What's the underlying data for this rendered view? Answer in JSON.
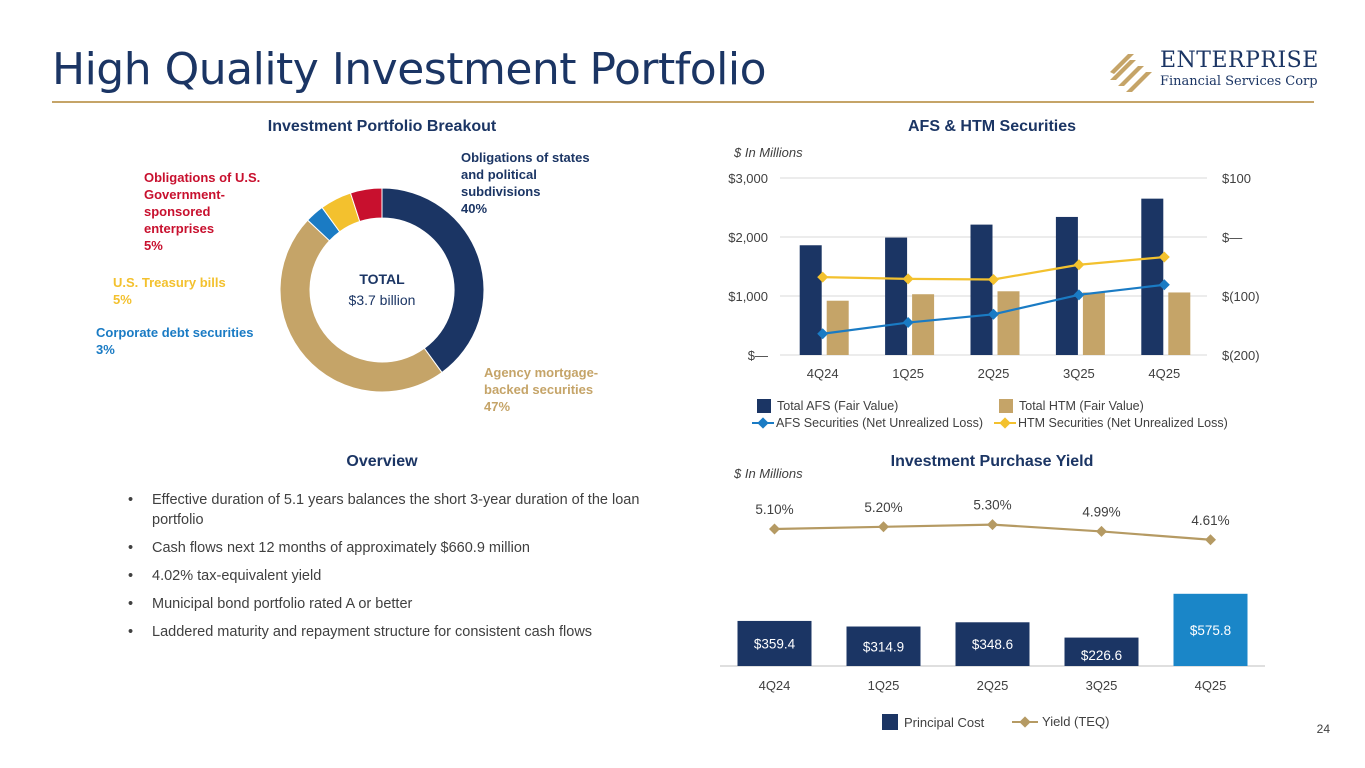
{
  "header": {
    "title": "High Quality Investment Portfolio",
    "logo_name": "ENTERPRISE",
    "logo_sub": "Financial Services Corp"
  },
  "colors": {
    "navy": "#1b3564",
    "gold": "#c5a468",
    "yellow": "#f3c12e",
    "red": "#c8102e",
    "blue": "#1a7bc4",
    "aqua": "#1a86c8"
  },
  "sections": {
    "breakout_title": "Investment Portfolio Breakout",
    "afs_title": "AFS & HTM Securities",
    "overview_title": "Overview",
    "yield_title": "Investment Purchase Yield",
    "unit_note": "$ In Millions"
  },
  "overview": {
    "bullets": [
      "Effective duration of 5.1 years balances the short 3-year duration of the loan portfolio",
      "Cash flows next 12 months of approximately $660.9 million",
      "4.02% tax-equivalent yield",
      "Municipal bond portfolio rated A or better",
      "Laddered maturity and repayment structure for consistent cash flows"
    ]
  },
  "page_number": "24",
  "chart_data": [
    {
      "type": "pie",
      "title": "Investment Portfolio Breakout",
      "center_title": "TOTAL",
      "center_value": "$3.7 billion",
      "slices": [
        {
          "label": "Obligations of states and political subdivisions",
          "pct_label": "40%",
          "value": 40,
          "color": "#1b3564"
        },
        {
          "label": "Agency mortgage-backed securities",
          "pct_label": "47%",
          "value": 47,
          "color": "#c5a468"
        },
        {
          "label": "Corporate debt securities",
          "pct_label": "3%",
          "value": 3,
          "color": "#1a7bc4"
        },
        {
          "label": "U.S. Treasury bills",
          "pct_label": "5%",
          "value": 5,
          "color": "#f3c12e"
        },
        {
          "label": "Obligations of U.S. Government-sponsored enterprises",
          "pct_label": "5%",
          "value": 5,
          "color": "#c8102e"
        }
      ]
    },
    {
      "type": "bar",
      "title": "AFS & HTM Securities",
      "categories": [
        "4Q24",
        "1Q25",
        "2Q25",
        "3Q25",
        "4Q25"
      ],
      "ylim": [
        0,
        3000
      ],
      "y_ticks": [
        0,
        1000,
        2000,
        3000
      ],
      "y_tick_labels": [
        "$—",
        "$1,000",
        "$2,000",
        "$3,000"
      ],
      "y2lim": [
        -200,
        100
      ],
      "y2_ticks": [
        -200,
        -100,
        0,
        100
      ],
      "y2_tick_labels": [
        "$(200)",
        "$(100)",
        "$—",
        "$100"
      ],
      "series": [
        {
          "name": "Total AFS (Fair Value)",
          "kind": "bar",
          "axis": "left",
          "color": "#1b3564",
          "values": [
            1860,
            1990,
            2210,
            2340,
            2650
          ]
        },
        {
          "name": "Total HTM (Fair Value)",
          "kind": "bar",
          "axis": "left",
          "color": "#c5a468",
          "values": [
            920,
            1030,
            1080,
            1060,
            1060
          ]
        },
        {
          "name": "AFS Securities (Net Unrealized Loss)",
          "kind": "line",
          "axis": "right",
          "color": "#1a7bc4",
          "values": [
            -164,
            -145,
            -131,
            -98,
            -81
          ]
        },
        {
          "name": "HTM Securities (Net Unrealized Loss)",
          "kind": "line",
          "axis": "right",
          "color": "#f3c12e",
          "values": [
            -68,
            -71,
            -72,
            -47,
            -34
          ]
        }
      ]
    },
    {
      "type": "bar",
      "title": "Investment Purchase Yield",
      "categories": [
        "4Q24",
        "1Q25",
        "2Q25",
        "3Q25",
        "4Q25"
      ],
      "ylim": [
        0,
        660
      ],
      "series": [
        {
          "name": "Principal Cost",
          "kind": "bar",
          "color": "#1b3564",
          "highlight_color": "#1a86c8",
          "values": [
            359.4,
            314.9,
            348.6,
            226.6,
            575.8
          ],
          "value_labels": [
            "$359.4",
            "$314.9",
            "$348.6",
            "$226.6",
            "$575.8"
          ]
        },
        {
          "name": "Yield (TEQ)",
          "kind": "line",
          "color": "#b59a63",
          "values": [
            5.1,
            5.2,
            5.3,
            4.99,
            4.61
          ],
          "value_labels": [
            "5.10%",
            "5.20%",
            "5.30%",
            "4.99%",
            "4.61%"
          ]
        }
      ]
    }
  ]
}
